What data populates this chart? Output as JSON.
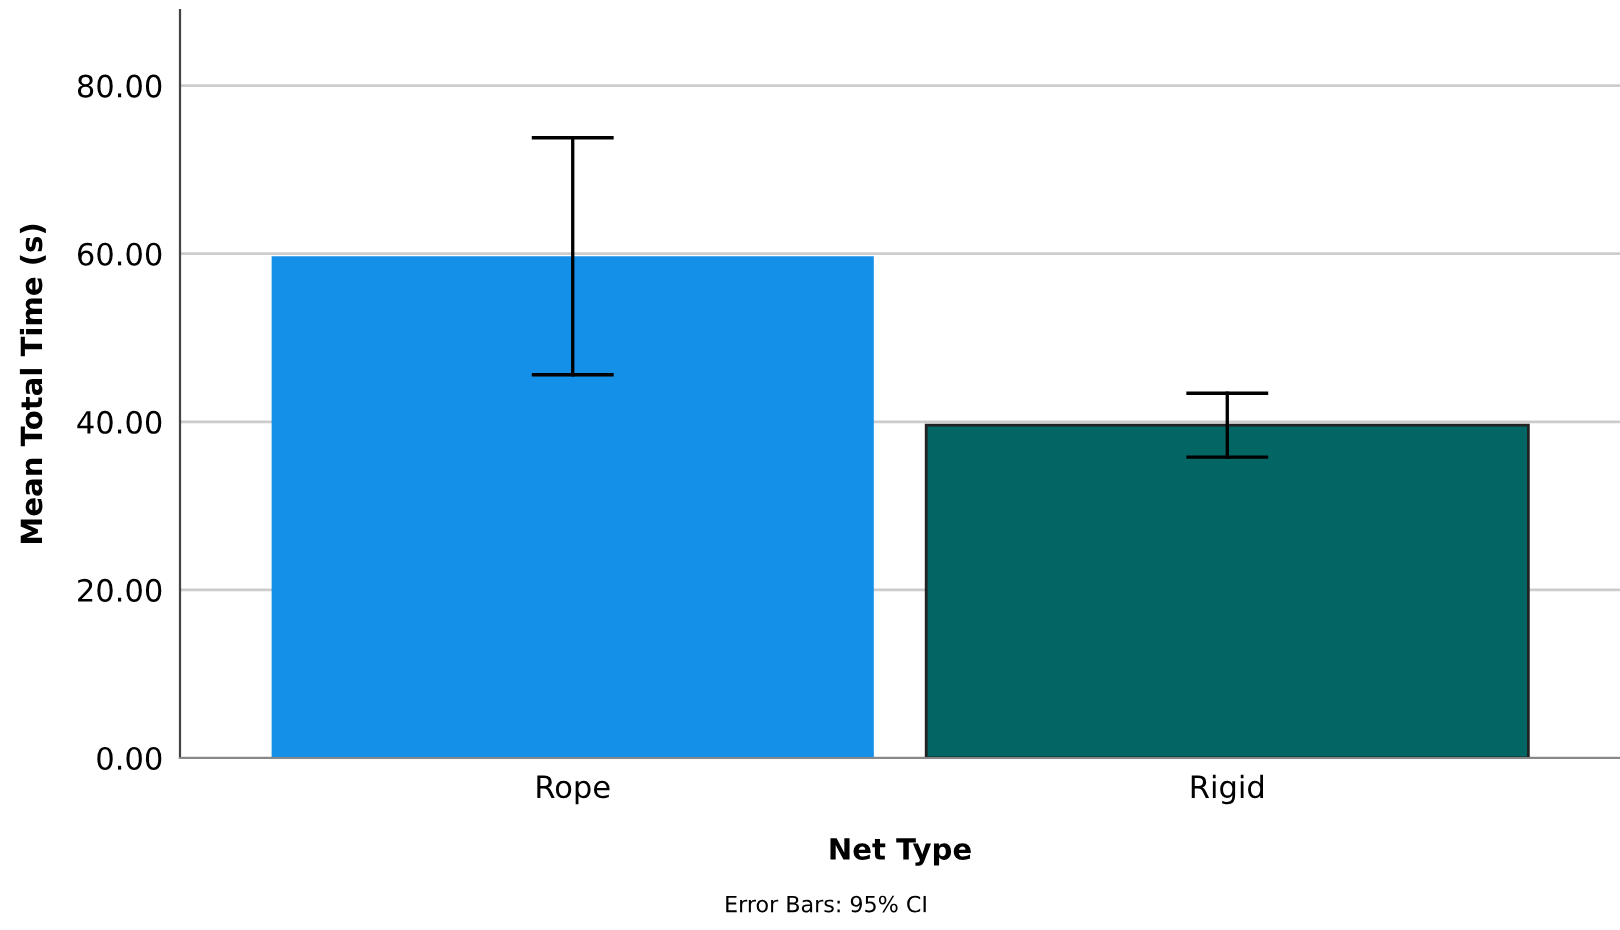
{
  "chart_data": {
    "type": "bar",
    "xlabel": "Net Type",
    "ylabel": "Mean Total Time (s)",
    "categories": [
      "Rope",
      "Rigid"
    ],
    "values": [
      59.7,
      39.6
    ],
    "colors": [
      "#1490e8",
      "#016664"
    ],
    "errors": [
      [
        45.6,
        73.8
      ],
      [
        35.8,
        43.4
      ]
    ],
    "ylim": [
      0,
      89
    ],
    "yticks": [
      {
        "value": 0,
        "label": "0.00"
      },
      {
        "value": 20,
        "label": "20.00"
      },
      {
        "value": 40,
        "label": "40.00"
      },
      {
        "value": 60,
        "label": "60.00"
      },
      {
        "value": 80,
        "label": "80.00"
      }
    ],
    "grid": "y",
    "annotations": [
      "Error Bars: 95% CI"
    ]
  }
}
